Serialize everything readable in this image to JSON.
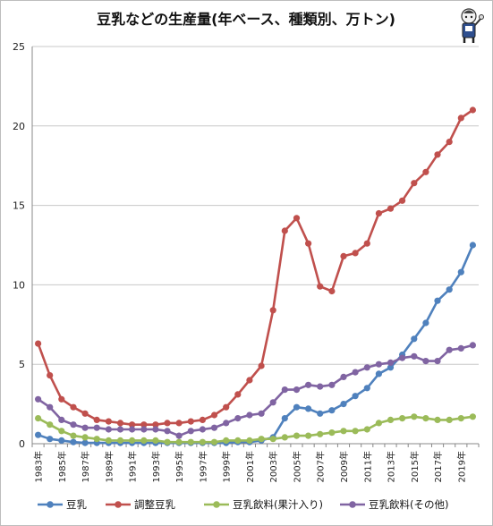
{
  "chart_data": {
    "type": "line",
    "title": "豆乳などの生産量(年ベース、種類別、万トン)",
    "xlabel": "",
    "ylabel": "",
    "ylim": [
      0,
      25
    ],
    "yticks": [
      0,
      5,
      10,
      15,
      20,
      25
    ],
    "x": [
      "1983年",
      "1984年",
      "1985年",
      "1986年",
      "1987年",
      "1988年",
      "1989年",
      "1990年",
      "1991年",
      "1992年",
      "1993年",
      "1994年",
      "1995年",
      "1996年",
      "1997年",
      "1998年",
      "1999年",
      "2000年",
      "2001年",
      "2002年",
      "2003年",
      "2004年",
      "2005年",
      "2006年",
      "2007年",
      "2008年",
      "2009年",
      "2010年",
      "2011年",
      "2012年",
      "2013年",
      "2014年",
      "2015年",
      "2016年",
      "2017年",
      "2018年",
      "2019年",
      "2020年"
    ],
    "xtick_labels": [
      "1983年",
      "1985年",
      "1987年",
      "1989年",
      "1991年",
      "1993年",
      "1995年",
      "1997年",
      "1999年",
      "2001年",
      "2003年",
      "2005年",
      "2007年",
      "2009年",
      "2011年",
      "2013年",
      "2015年",
      "2017年",
      "2019年"
    ],
    "grid": "horizontal",
    "legend": "bottom",
    "series": [
      {
        "name": "豆乳",
        "color": "#4f81bd",
        "values": [
          0.55,
          0.3,
          0.2,
          0.1,
          0.05,
          0.05,
          0.05,
          0.05,
          0.05,
          0.05,
          0.05,
          0.05,
          0.05,
          0.05,
          0.05,
          0.05,
          0.05,
          0.1,
          0.1,
          0.2,
          0.4,
          1.6,
          2.3,
          2.2,
          1.9,
          2.1,
          2.5,
          3.0,
          3.5,
          4.4,
          4.8,
          5.6,
          6.6,
          7.6,
          9.0,
          9.7,
          10.8,
          12.5
        ]
      },
      {
        "name": "調整豆乳",
        "color": "#c0504d",
        "values": [
          6.3,
          4.3,
          2.8,
          2.3,
          1.9,
          1.5,
          1.4,
          1.3,
          1.2,
          1.2,
          1.2,
          1.3,
          1.3,
          1.4,
          1.5,
          1.8,
          2.3,
          3.1,
          4.0,
          4.9,
          8.4,
          13.4,
          14.2,
          12.6,
          9.9,
          9.6,
          11.8,
          12.0,
          12.6,
          14.5,
          14.8,
          15.3,
          16.4,
          17.1,
          18.2,
          19.0,
          20.5,
          21.0
        ]
      },
      {
        "name": "豆乳飲料(果汁入り)",
        "color": "#9bbb59",
        "values": [
          1.6,
          1.2,
          0.8,
          0.5,
          0.4,
          0.3,
          0.2,
          0.2,
          0.2,
          0.2,
          0.2,
          0.1,
          0.1,
          0.1,
          0.1,
          0.1,
          0.2,
          0.2,
          0.2,
          0.3,
          0.3,
          0.4,
          0.5,
          0.5,
          0.6,
          0.7,
          0.8,
          0.8,
          0.9,
          1.3,
          1.5,
          1.6,
          1.7,
          1.6,
          1.5,
          1.5,
          1.6,
          1.7
        ]
      },
      {
        "name": "豆乳飲料(その他)",
        "color": "#8064a2",
        "values": [
          2.8,
          2.3,
          1.5,
          1.2,
          1.0,
          1.0,
          0.9,
          0.9,
          0.9,
          0.9,
          0.9,
          0.8,
          0.5,
          0.8,
          0.9,
          1.0,
          1.3,
          1.6,
          1.8,
          1.9,
          2.6,
          3.4,
          3.4,
          3.7,
          3.6,
          3.7,
          4.2,
          4.5,
          4.8,
          5.0,
          5.1,
          5.4,
          5.5,
          5.2,
          5.2,
          5.9,
          6.0,
          6.2
        ]
      }
    ]
  }
}
